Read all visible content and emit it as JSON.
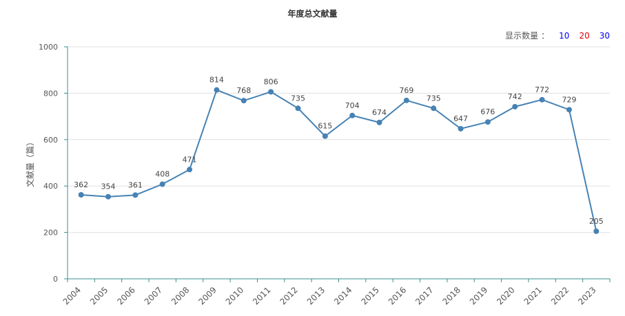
{
  "chart_data": {
    "type": "line",
    "title": "年度总文献量",
    "ylabel": "文献量（篇）",
    "xlabel": "",
    "ylim": [
      0,
      1000
    ],
    "yticks": [
      0,
      200,
      400,
      600,
      800,
      1000
    ],
    "grid": true,
    "categories": [
      "2004",
      "2005",
      "2006",
      "2007",
      "2008",
      "2009",
      "2010",
      "2011",
      "2012",
      "2013",
      "2014",
      "2015",
      "2016",
      "2017",
      "2018",
      "2019",
      "2020",
      "2021",
      "2022",
      "2023"
    ],
    "series": [
      {
        "values": [
          362,
          354,
          361,
          408,
          471,
          814,
          768,
          806,
          735,
          615,
          704,
          674,
          769,
          735,
          647,
          676,
          742,
          772,
          729,
          205
        ]
      }
    ],
    "line_color": "#4682b4"
  },
  "display_count": {
    "label": "显示数量",
    "colon": "：",
    "options": [
      "10",
      "20",
      "30"
    ]
  }
}
